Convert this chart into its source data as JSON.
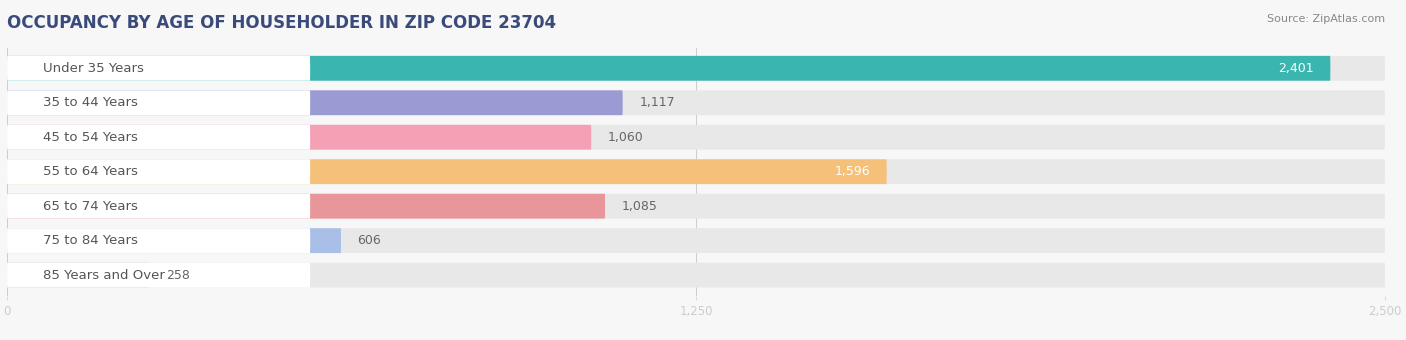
{
  "title": "OCCUPANCY BY AGE OF HOUSEHOLDER IN ZIP CODE 23704",
  "source": "Source: ZipAtlas.com",
  "categories": [
    "Under 35 Years",
    "35 to 44 Years",
    "45 to 54 Years",
    "55 to 64 Years",
    "65 to 74 Years",
    "75 to 84 Years",
    "85 Years and Over"
  ],
  "values": [
    2401,
    1117,
    1060,
    1596,
    1085,
    606,
    258
  ],
  "bar_colors": [
    "#3ab5b0",
    "#9b9bd4",
    "#f4a0b5",
    "#f5c07a",
    "#e8969a",
    "#aabfe8",
    "#c9b8d8"
  ],
  "xlim": [
    0,
    2500
  ],
  "xticks": [
    0,
    1250,
    2500
  ],
  "xtick_labels": [
    "0",
    "1,250",
    "2,500"
  ],
  "bg_color": "#f7f7f7",
  "bar_bg_color": "#e8e8e8",
  "title_fontsize": 12,
  "label_fontsize": 9.5,
  "value_fontsize": 9,
  "source_fontsize": 8,
  "title_color": "#3a4a7a",
  "source_color": "#888888",
  "label_color": "#555555",
  "value_color_inside": "#ffffff",
  "value_color_outside": "#666666"
}
